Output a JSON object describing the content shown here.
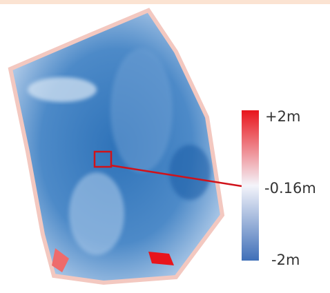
{
  "colorbar": {
    "labels": [
      "+2m",
      "-0.16m",
      "-2m"
    ]
  }
}
